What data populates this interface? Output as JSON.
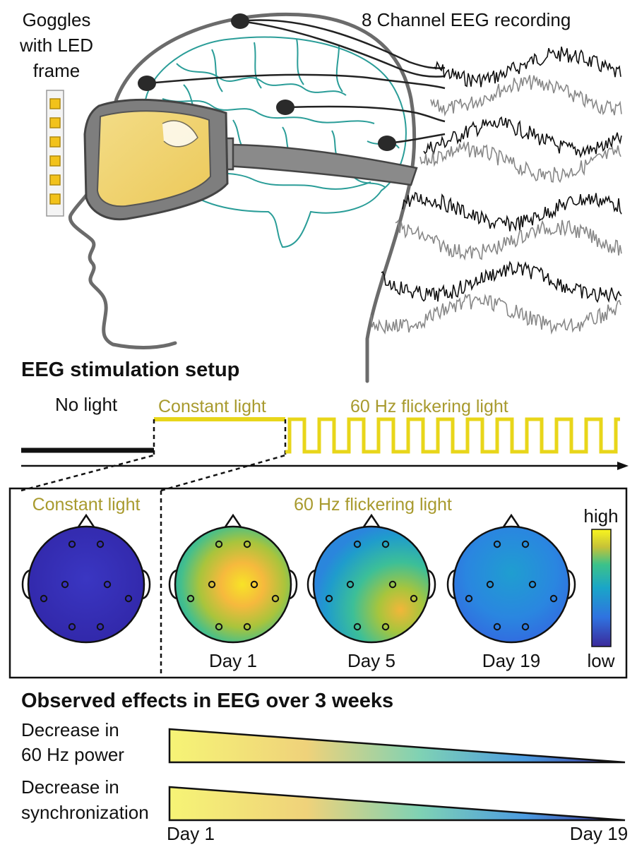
{
  "hero": {
    "goggles_label_lines": [
      "Goggles",
      "with LED",
      "frame"
    ],
    "eeg_label": "8 Channel EEG recording"
  },
  "setup": {
    "title": "EEG stimulation setup",
    "no_light": "No light",
    "constant_light": "Constant light",
    "flicker_light": "60 Hz flickering light"
  },
  "topomaps": {
    "constant_label": "Constant light",
    "flicker_label": "60 Hz flickering light",
    "colorbar_high": "high",
    "colorbar_low": "low",
    "days": [
      "Day 1",
      "Day 5",
      "Day 19"
    ]
  },
  "effects": {
    "title": "Observed effects in EEG over 3 weeks",
    "rows": [
      {
        "lines": [
          "Decrease in",
          "60 Hz power"
        ]
      },
      {
        "lines": [
          "Decrease in",
          "synchronization"
        ]
      }
    ],
    "start_label": "Day 1",
    "end_label": "Day 19"
  },
  "colors": {
    "led": "#f2c21b",
    "lens": "#f1d778",
    "brain": "#2a9d98",
    "flicker": "#e8d61a",
    "gold_text": "#a89a2e",
    "colormap": [
      "#3b2a9b",
      "#2f73e0",
      "#1aa5c8",
      "#3cc28a",
      "#a6c83c",
      "#f3b53a",
      "#f9f51e"
    ]
  }
}
